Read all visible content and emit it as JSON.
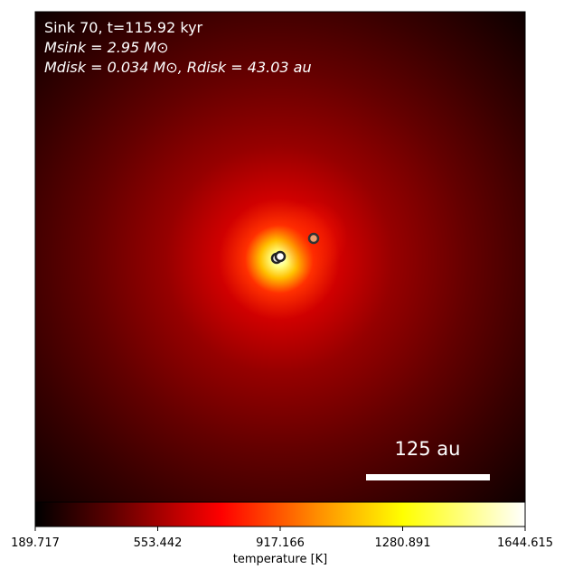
{
  "chart_data": {
    "type": "image",
    "annotations": [
      "Sink 70, t=115.92 kyr",
      "Msink = 2.95 M⊙",
      "Mdisk = 0.034 M⊙, Rdisk = 43.03 au"
    ],
    "scale_bar_label": "125 au",
    "colorbar": {
      "label": "temperature [K]",
      "lim": [
        189.717,
        1644.615
      ],
      "ticks": [
        189.717,
        553.442,
        917.166,
        1280.891,
        1644.615
      ]
    }
  }
}
